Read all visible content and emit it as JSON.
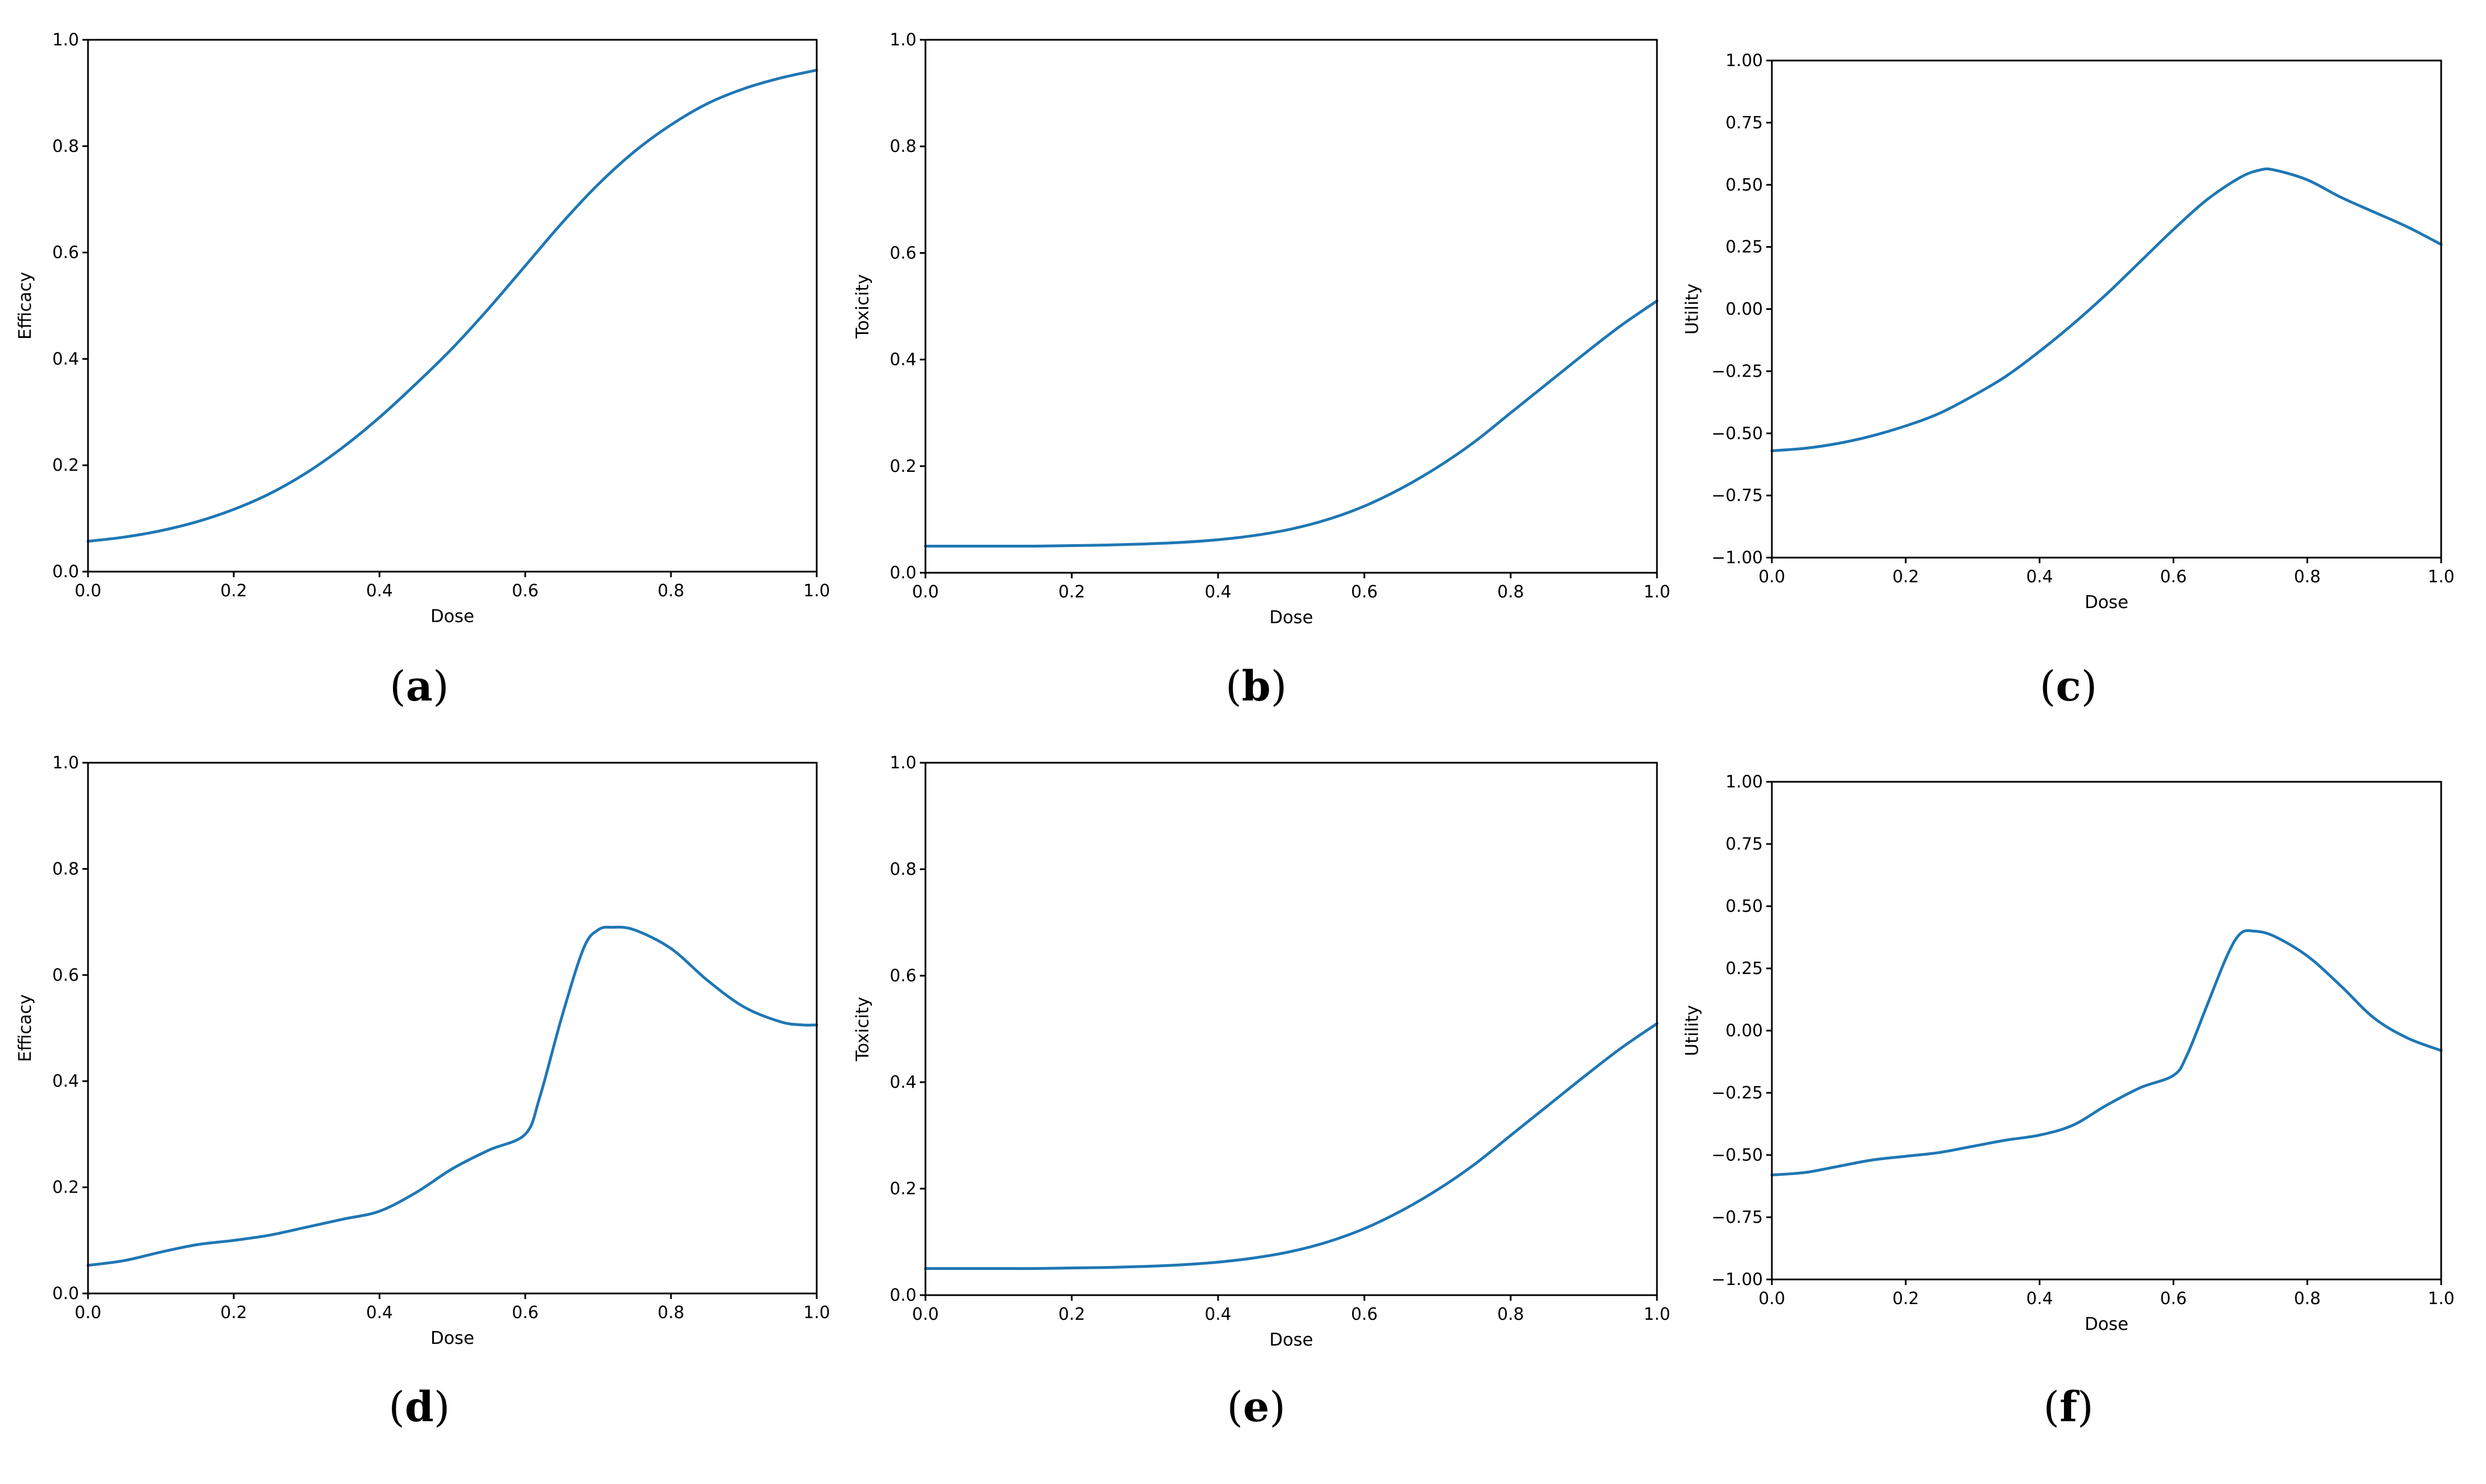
{
  "colors": {
    "line": "#1f77b4",
    "axes": "#000000",
    "background": "#ffffff"
  },
  "chart_data": [
    {
      "type": "line",
      "caption": "a",
      "xlabel": "Dose",
      "ylabel": "Efficacy",
      "xlim": [
        0,
        1
      ],
      "ylim": [
        0,
        1
      ],
      "xticks": [
        "0.0",
        "0.2",
        "0.4",
        "0.6",
        "0.8",
        "1.0"
      ],
      "yticks": [
        "0.0",
        "0.2",
        "0.4",
        "0.6",
        "0.8",
        "1.0"
      ],
      "grid": false,
      "series": [
        {
          "x": [
            0.0,
            0.05,
            0.1,
            0.15,
            0.2,
            0.25,
            0.3,
            0.35,
            0.4,
            0.45,
            0.5,
            0.55,
            0.6,
            0.65,
            0.7,
            0.75,
            0.8,
            0.85,
            0.9,
            0.95,
            1.0
          ],
          "values": [
            0.057,
            0.065,
            0.077,
            0.094,
            0.117,
            0.147,
            0.186,
            0.234,
            0.29,
            0.353,
            0.42,
            0.495,
            0.575,
            0.655,
            0.728,
            0.79,
            0.84,
            0.88,
            0.908,
            0.928,
            0.943
          ]
        }
      ]
    },
    {
      "type": "line",
      "caption": "b",
      "xlabel": "Dose",
      "ylabel": "Toxicity",
      "xlim": [
        0,
        1
      ],
      "ylim": [
        0,
        1
      ],
      "xticks": [
        "0.0",
        "0.2",
        "0.4",
        "0.6",
        "0.8",
        "1.0"
      ],
      "yticks": [
        "0.0",
        "0.2",
        "0.4",
        "0.6",
        "0.8",
        "1.0"
      ],
      "grid": false,
      "series": [
        {
          "x": [
            0.0,
            0.05,
            0.1,
            0.15,
            0.2,
            0.25,
            0.3,
            0.35,
            0.4,
            0.45,
            0.5,
            0.55,
            0.6,
            0.65,
            0.7,
            0.75,
            0.8,
            0.85,
            0.9,
            0.95,
            1.0
          ],
          "values": [
            0.05,
            0.05,
            0.05,
            0.05,
            0.051,
            0.052,
            0.054,
            0.057,
            0.062,
            0.07,
            0.082,
            0.1,
            0.125,
            0.158,
            0.198,
            0.245,
            0.3,
            0.355,
            0.41,
            0.463,
            0.51
          ]
        }
      ]
    },
    {
      "type": "line",
      "caption": "c",
      "xlabel": "Dose",
      "ylabel": "Utility",
      "xlim": [
        0,
        1
      ],
      "ylim": [
        -1,
        1
      ],
      "xticks": [
        "0.0",
        "0.2",
        "0.4",
        "0.6",
        "0.8",
        "1.0"
      ],
      "yticks": [
        "−1.00",
        "−0.75",
        "−0.50",
        "−0.25",
        "0.00",
        "0.25",
        "0.50",
        "0.75",
        "1.00"
      ],
      "grid": false,
      "series": [
        {
          "x": [
            0.0,
            0.05,
            0.1,
            0.15,
            0.2,
            0.25,
            0.3,
            0.35,
            0.4,
            0.45,
            0.5,
            0.55,
            0.6,
            0.65,
            0.7,
            0.73,
            0.75,
            0.8,
            0.85,
            0.9,
            0.95,
            1.0
          ],
          "values": [
            -0.57,
            -0.56,
            -0.54,
            -0.51,
            -0.47,
            -0.42,
            -0.35,
            -0.27,
            -0.17,
            -0.06,
            0.06,
            0.19,
            0.32,
            0.44,
            0.53,
            0.56,
            0.56,
            0.52,
            0.45,
            0.39,
            0.33,
            0.26
          ]
        }
      ]
    },
    {
      "type": "line",
      "caption": "d",
      "xlabel": "Dose",
      "ylabel": "Efficacy",
      "xlim": [
        0,
        1
      ],
      "ylim": [
        0,
        1
      ],
      "xticks": [
        "0.0",
        "0.2",
        "0.4",
        "0.6",
        "0.8",
        "1.0"
      ],
      "yticks": [
        "0.0",
        "0.2",
        "0.4",
        "0.6",
        "0.8",
        "1.0"
      ],
      "grid": false,
      "series": [
        {
          "x": [
            0.0,
            0.05,
            0.1,
            0.15,
            0.2,
            0.25,
            0.3,
            0.35,
            0.4,
            0.45,
            0.5,
            0.55,
            0.6,
            0.62,
            0.65,
            0.68,
            0.7,
            0.72,
            0.75,
            0.8,
            0.85,
            0.9,
            0.95,
            0.98,
            1.0
          ],
          "values": [
            0.053,
            0.062,
            0.078,
            0.092,
            0.1,
            0.11,
            0.125,
            0.14,
            0.155,
            0.19,
            0.235,
            0.27,
            0.3,
            0.37,
            0.52,
            0.65,
            0.685,
            0.69,
            0.685,
            0.65,
            0.59,
            0.54,
            0.512,
            0.506,
            0.506
          ]
        }
      ]
    },
    {
      "type": "line",
      "caption": "e",
      "xlabel": "Dose",
      "ylabel": "Toxicity",
      "xlim": [
        0,
        1
      ],
      "ylim": [
        0,
        1
      ],
      "xticks": [
        "0.0",
        "0.2",
        "0.4",
        "0.6",
        "0.8",
        "1.0"
      ],
      "yticks": [
        "0.0",
        "0.2",
        "0.4",
        "0.6",
        "0.8",
        "1.0"
      ],
      "grid": false,
      "series": [
        {
          "x": [
            0.0,
            0.05,
            0.1,
            0.15,
            0.2,
            0.25,
            0.3,
            0.35,
            0.4,
            0.45,
            0.5,
            0.55,
            0.6,
            0.65,
            0.7,
            0.75,
            0.8,
            0.85,
            0.9,
            0.95,
            1.0
          ],
          "values": [
            0.05,
            0.05,
            0.05,
            0.05,
            0.051,
            0.052,
            0.054,
            0.057,
            0.062,
            0.07,
            0.082,
            0.1,
            0.125,
            0.158,
            0.198,
            0.245,
            0.3,
            0.355,
            0.41,
            0.463,
            0.51
          ]
        }
      ]
    },
    {
      "type": "line",
      "caption": "f",
      "xlabel": "Dose",
      "ylabel": "Utility",
      "xlim": [
        0,
        1
      ],
      "ylim": [
        -1,
        1
      ],
      "xticks": [
        "0.0",
        "0.2",
        "0.4",
        "0.6",
        "0.8",
        "1.0"
      ],
      "yticks": [
        "−1.00",
        "−0.75",
        "−0.50",
        "−0.25",
        "0.00",
        "0.25",
        "0.50",
        "0.75",
        "1.00"
      ],
      "grid": false,
      "series": [
        {
          "x": [
            0.0,
            0.05,
            0.1,
            0.15,
            0.2,
            0.25,
            0.3,
            0.35,
            0.4,
            0.45,
            0.5,
            0.55,
            0.6,
            0.62,
            0.65,
            0.68,
            0.7,
            0.72,
            0.75,
            0.8,
            0.85,
            0.9,
            0.95,
            1.0
          ],
          "values": [
            -0.58,
            -0.57,
            -0.545,
            -0.52,
            -0.505,
            -0.49,
            -0.465,
            -0.44,
            -0.42,
            -0.38,
            -0.3,
            -0.23,
            -0.18,
            -0.1,
            0.1,
            0.3,
            0.39,
            0.4,
            0.38,
            0.3,
            0.18,
            0.05,
            -0.03,
            -0.08
          ]
        }
      ]
    }
  ]
}
